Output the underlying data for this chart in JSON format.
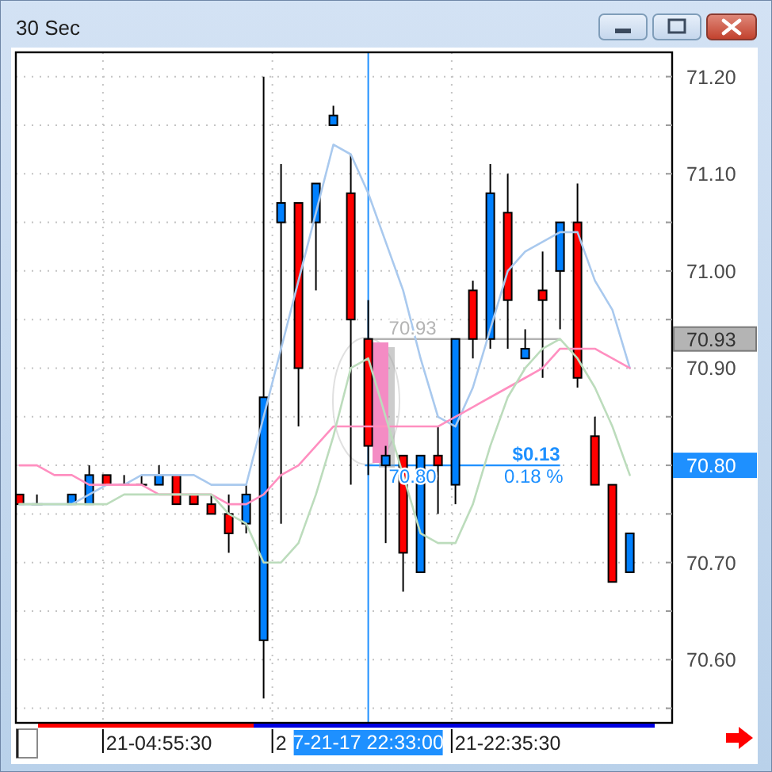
{
  "chart_data": {
    "type": "candlestick",
    "title": "30 Sec",
    "categories": [
      null,
      null,
      null,
      null,
      null,
      null,
      null,
      null,
      "21-04:55:30",
      null,
      null,
      null,
      null,
      null,
      null,
      "2",
      null,
      null,
      null,
      null,
      "7-21-17 22:33:00",
      null,
      null,
      null,
      null,
      null,
      null,
      null,
      "21-22:35:30",
      null,
      null,
      null,
      null,
      null,
      null,
      null
    ],
    "ohlc": [
      [
        70.77,
        70.77,
        70.76,
        70.76
      ],
      [
        70.76,
        70.77,
        70.76,
        70.76
      ],
      null,
      [
        70.76,
        70.77,
        70.76,
        70.77
      ],
      [
        70.76,
        70.8,
        70.76,
        70.79
      ],
      [
        70.79,
        70.79,
        70.78,
        70.78
      ],
      [
        70.78,
        70.79,
        70.78,
        70.78
      ],
      [
        70.78,
        70.79,
        70.78,
        70.78
      ],
      [
        70.78,
        70.8,
        70.78,
        70.79
      ],
      [
        70.79,
        70.79,
        70.76,
        70.76
      ],
      [
        70.77,
        70.77,
        70.76,
        70.76
      ],
      [
        70.76,
        70.77,
        70.75,
        70.75
      ],
      [
        70.75,
        70.77,
        70.71,
        70.73
      ],
      [
        70.74,
        70.78,
        70.73,
        70.77
      ],
      [
        70.62,
        71.2,
        70.56,
        70.87
      ],
      [
        71.05,
        71.11,
        70.74,
        71.07
      ],
      [
        71.07,
        71.07,
        70.84,
        70.9
      ],
      [
        71.05,
        71.09,
        70.98,
        71.09
      ],
      [
        71.15,
        71.17,
        71.15,
        71.16
      ],
      [
        71.08,
        71.12,
        70.78,
        70.95
      ],
      [
        70.93,
        70.97,
        70.79,
        70.82
      ],
      [
        70.8,
        70.82,
        70.72,
        70.81
      ],
      [
        70.81,
        70.81,
        70.67,
        70.71
      ],
      [
        70.69,
        70.81,
        70.69,
        70.81
      ],
      [
        70.81,
        70.84,
        70.75,
        70.8
      ],
      [
        70.78,
        70.93,
        70.76,
        70.93
      ],
      [
        70.98,
        70.99,
        70.91,
        70.93
      ],
      [
        70.93,
        71.11,
        70.92,
        71.08
      ],
      [
        71.06,
        71.1,
        70.92,
        70.97
      ],
      [
        70.91,
        70.94,
        70.91,
        70.92
      ],
      [
        70.98,
        71.02,
        70.89,
        70.97
      ],
      [
        71.0,
        71.05,
        70.94,
        71.05
      ],
      [
        71.05,
        71.09,
        70.88,
        70.89
      ],
      [
        70.83,
        70.85,
        70.78,
        70.78
      ],
      [
        70.78,
        70.78,
        70.68,
        70.68
      ],
      [
        70.69,
        70.73,
        70.69,
        70.73
      ]
    ],
    "colors": [
      "#ff0000",
      "#000000",
      null,
      "#0080ff",
      "#0080ff",
      "#ff0000",
      "#000000",
      "#000000",
      "#0080ff",
      "#ff0000",
      "#ff0000",
      "#ff0000",
      "#ff0000",
      "#0080ff",
      "#0080ff",
      "#0080ff",
      "#ff0000",
      "#0080ff",
      "#0080ff",
      "#ff0000",
      "#ff0000",
      "#0080ff",
      "#ff0000",
      "#0080ff",
      "#ff0000",
      "#0080ff",
      "#ff0000",
      "#0080ff",
      "#ff0000",
      "#0080ff",
      "#ff0000",
      "#0080ff",
      "#ff0000",
      "#ff0000",
      "#ff0000",
      "#0080ff"
    ],
    "series": [
      {
        "type": "line",
        "color": "#a9c9ee",
        "values": [
          70.76,
          70.76,
          70.76,
          70.76,
          70.77,
          70.78,
          70.78,
          70.79,
          70.79,
          70.79,
          70.79,
          70.78,
          70.78,
          70.78,
          70.85,
          70.92,
          70.99,
          71.06,
          71.13,
          71.12,
          71.08,
          71.03,
          70.98,
          70.91,
          70.85,
          70.84,
          70.88,
          70.94,
          71.0,
          71.02,
          71.03,
          71.04,
          71.04,
          70.99,
          70.96,
          70.9
        ]
      },
      {
        "type": "line",
        "color": "#ff8fc0",
        "values": [
          70.8,
          70.8,
          70.79,
          70.79,
          70.78,
          70.78,
          70.78,
          70.78,
          70.77,
          70.77,
          70.77,
          70.77,
          70.76,
          70.76,
          70.77,
          70.79,
          70.8,
          70.82,
          70.84,
          70.84,
          70.84,
          70.84,
          70.84,
          70.84,
          70.84,
          70.85,
          70.86,
          70.87,
          70.88,
          70.89,
          70.9,
          70.92,
          70.92,
          70.92,
          70.91,
          70.9
        ]
      },
      {
        "type": "line",
        "color": "#bcdcbc",
        "values": [
          70.76,
          70.76,
          70.76,
          70.76,
          70.76,
          70.76,
          70.77,
          70.77,
          70.77,
          70.77,
          70.77,
          70.77,
          70.75,
          70.74,
          70.7,
          70.7,
          70.72,
          70.77,
          70.83,
          70.9,
          70.91,
          70.85,
          70.79,
          70.73,
          70.72,
          70.72,
          70.76,
          70.82,
          70.87,
          70.9,
          70.92,
          70.93,
          70.91,
          70.88,
          70.84,
          70.79
        ]
      }
    ],
    "ylim": [
      70.535,
      71.225
    ],
    "yticks": [
      {
        "value": 70.55,
        "label": null
      },
      {
        "value": 70.6,
        "label": "70.60"
      },
      {
        "value": 70.65,
        "label": null
      },
      {
        "value": 70.7,
        "label": "70.70"
      },
      {
        "value": 70.75,
        "label": null
      },
      {
        "value": 70.8,
        "label": null
      },
      {
        "value": 70.85,
        "label": null
      },
      {
        "value": 70.9,
        "label": "70.90"
      },
      {
        "value": 70.95,
        "label": null
      },
      {
        "value": 71,
        "label": "71.00"
      },
      {
        "value": 71.05,
        "label": null
      },
      {
        "value": 71.1,
        "label": "71.10"
      },
      {
        "value": 71.15,
        "label": null
      },
      {
        "value": 71.2,
        "label": "71.20"
      }
    ],
    "grid": true,
    "ref_lines": [
      {
        "axis": "x",
        "value": "7-21-17 22:33:00",
        "color": "#1e90ff"
      },
      {
        "axis": "y",
        "value": 70.93,
        "label": "70.93",
        "color": "#b4b4b4"
      },
      {
        "axis": "y",
        "value": 70.8,
        "label": "70.80",
        "color": "#1e90ff"
      }
    ],
    "annotations": [
      "$0.13",
      "0.18 %"
    ]
  }
}
